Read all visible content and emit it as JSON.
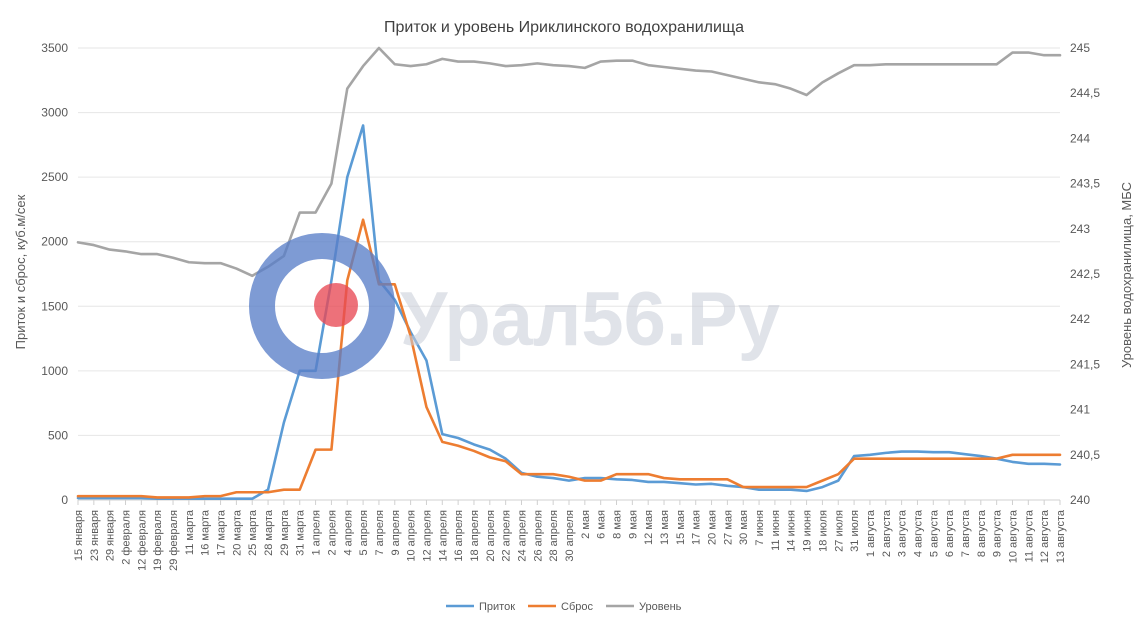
{
  "chart_data": {
    "type": "line",
    "title": "Приток и уровень Ириклинского водохранилища",
    "ylabel": "Приток и сброс, куб.м/сек",
    "y2label": "Уровень водохранилища, МБС",
    "ylim": [
      0,
      3500
    ],
    "y2lim": [
      240,
      245
    ],
    "yticks": [
      0,
      500,
      1000,
      1500,
      2000,
      2500,
      3000,
      3500
    ],
    "y2ticks": [
      "240",
      "240,5",
      "241",
      "241,5",
      "242",
      "242,5",
      "243",
      "243,5",
      "244",
      "244,5",
      "245"
    ],
    "grid": true,
    "legend_position": "bottom",
    "categories": [
      "15 января",
      "23 января",
      "29 января",
      "2 февраля",
      "12 февраля",
      "19 февраля",
      "29 февраля",
      "11 марта",
      "16 марта",
      "17 марта",
      "20 марта",
      "25 марта",
      "28 марта",
      "29 марта",
      "31 марта",
      "1 апреля",
      "2 апреля",
      "4 апреля",
      "5 апреля",
      "7 апреля",
      "9 апреля",
      "10 апреля",
      "12 апреля",
      "14 апреля",
      "16 апреля",
      "18 апреля",
      "20 апреля",
      "22 апреля",
      "24 апреля",
      "26 апреля",
      "28 апреля",
      "30 апреля",
      "2 мая",
      "6 мая",
      "8 мая",
      "9 мая",
      "12 мая",
      "13 мая",
      "15 мая",
      "17 мая",
      "20 мая",
      "27 мая",
      "30 мая",
      "7 июня",
      "11 июня",
      "14 июня",
      "19 июня",
      "18 июля",
      "27 июля",
      "31 июля",
      "1 августа",
      "2 августа",
      "3 августа",
      "4 августа",
      "5 августа",
      "6 августа",
      "7 августа",
      "8 августа",
      "9 августа",
      "10 августа",
      "11 августа",
      "12 августа",
      "13 августа"
    ],
    "series": [
      {
        "name": "Приток",
        "color": "#5b9bd5",
        "axis": "left",
        "values": [
          15,
          15,
          15,
          15,
          15,
          10,
          10,
          10,
          10,
          10,
          10,
          10,
          80,
          600,
          1000,
          1000,
          1700,
          2500,
          2900,
          1700,
          1550,
          1300,
          1080,
          510,
          480,
          430,
          390,
          320,
          210,
          180,
          170,
          150,
          170,
          170,
          160,
          155,
          140,
          140,
          130,
          120,
          125,
          110,
          100,
          80,
          80,
          80,
          70,
          100,
          150,
          340,
          350,
          365,
          375,
          375,
          370,
          370,
          355,
          340,
          320,
          295,
          280,
          280,
          275
        ]
      },
      {
        "name": "Сброс",
        "color": "#ed7d31",
        "axis": "left",
        "values": [
          30,
          30,
          30,
          30,
          30,
          20,
          20,
          20,
          30,
          30,
          60,
          60,
          60,
          80,
          80,
          390,
          390,
          1700,
          2170,
          1670,
          1670,
          1270,
          720,
          450,
          420,
          380,
          330,
          300,
          200,
          200,
          200,
          180,
          150,
          150,
          200,
          200,
          200,
          170,
          160,
          160,
          160,
          160,
          100,
          100,
          100,
          100,
          100,
          150,
          200,
          320,
          320,
          320,
          320,
          320,
          320,
          320,
          320,
          320,
          320,
          350,
          350,
          350,
          350
        ]
      },
      {
        "name": "Уровень",
        "color": "#a5a5a5",
        "axis": "right",
        "values": [
          242.85,
          242.82,
          242.77,
          242.75,
          242.72,
          242.72,
          242.68,
          242.63,
          242.62,
          242.62,
          242.56,
          242.48,
          242.58,
          242.7,
          243.18,
          243.18,
          243.5,
          244.55,
          244.8,
          245.0,
          244.82,
          244.8,
          244.82,
          244.88,
          244.85,
          244.85,
          244.83,
          244.8,
          244.81,
          244.83,
          244.81,
          244.8,
          244.78,
          244.85,
          244.86,
          244.86,
          244.81,
          244.79,
          244.77,
          244.75,
          244.74,
          244.7,
          244.66,
          244.62,
          244.6,
          244.55,
          244.48,
          244.62,
          244.72,
          244.81,
          244.81,
          244.82,
          244.82,
          244.82,
          244.82,
          244.82,
          244.82,
          244.82,
          244.82,
          244.95,
          244.95,
          244.92,
          244.92
        ]
      }
    ]
  },
  "watermark": {
    "text": "Урал56.Ру",
    "colors": {
      "ring": "#5a7fc8",
      "dot": "#e84a55"
    }
  }
}
